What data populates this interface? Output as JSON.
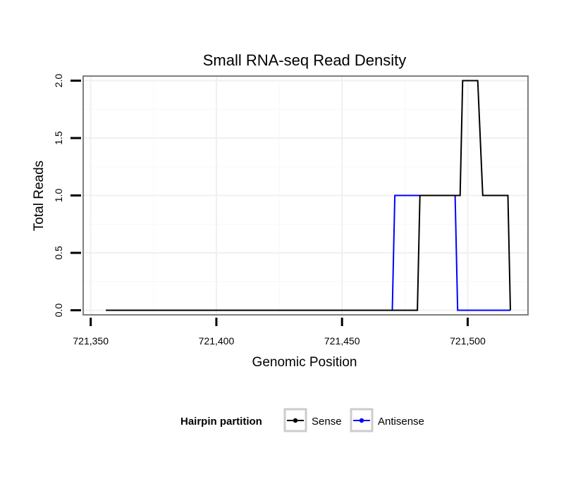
{
  "chart_data": {
    "type": "line",
    "title": "Small RNA-seq Read Density",
    "xlabel": "Genomic Position",
    "ylabel": "Total Reads",
    "xlim": [
      721347,
      721524
    ],
    "ylim": [
      -0.04,
      2.04
    ],
    "x_ticks": [
      721350,
      721400,
      721450,
      721500
    ],
    "x_tick_labels": [
      "721,350",
      "721,400",
      "721,450",
      "721,500"
    ],
    "y_ticks": [
      0,
      0.5,
      1,
      1.5,
      2
    ],
    "y_tick_labels": [
      "0.0",
      "0.5",
      "1.0",
      "1.5",
      "2.0"
    ],
    "grid": true,
    "legend": {
      "title": "Hairpin partition",
      "position": "bottom"
    },
    "series": [
      {
        "name": "Sense",
        "color": "#000000",
        "x": [
          721356,
          721480,
          721481,
          721497,
          721498,
          721504,
          721506,
          721516,
          721517
        ],
        "y": [
          0,
          0,
          1,
          1,
          2,
          2,
          1,
          1,
          0
        ]
      },
      {
        "name": "Antisense",
        "color": "#0000ff",
        "x": [
          721470,
          721471,
          721495,
          721496,
          721517
        ],
        "y": [
          0,
          1,
          1,
          0,
          0
        ]
      }
    ]
  }
}
